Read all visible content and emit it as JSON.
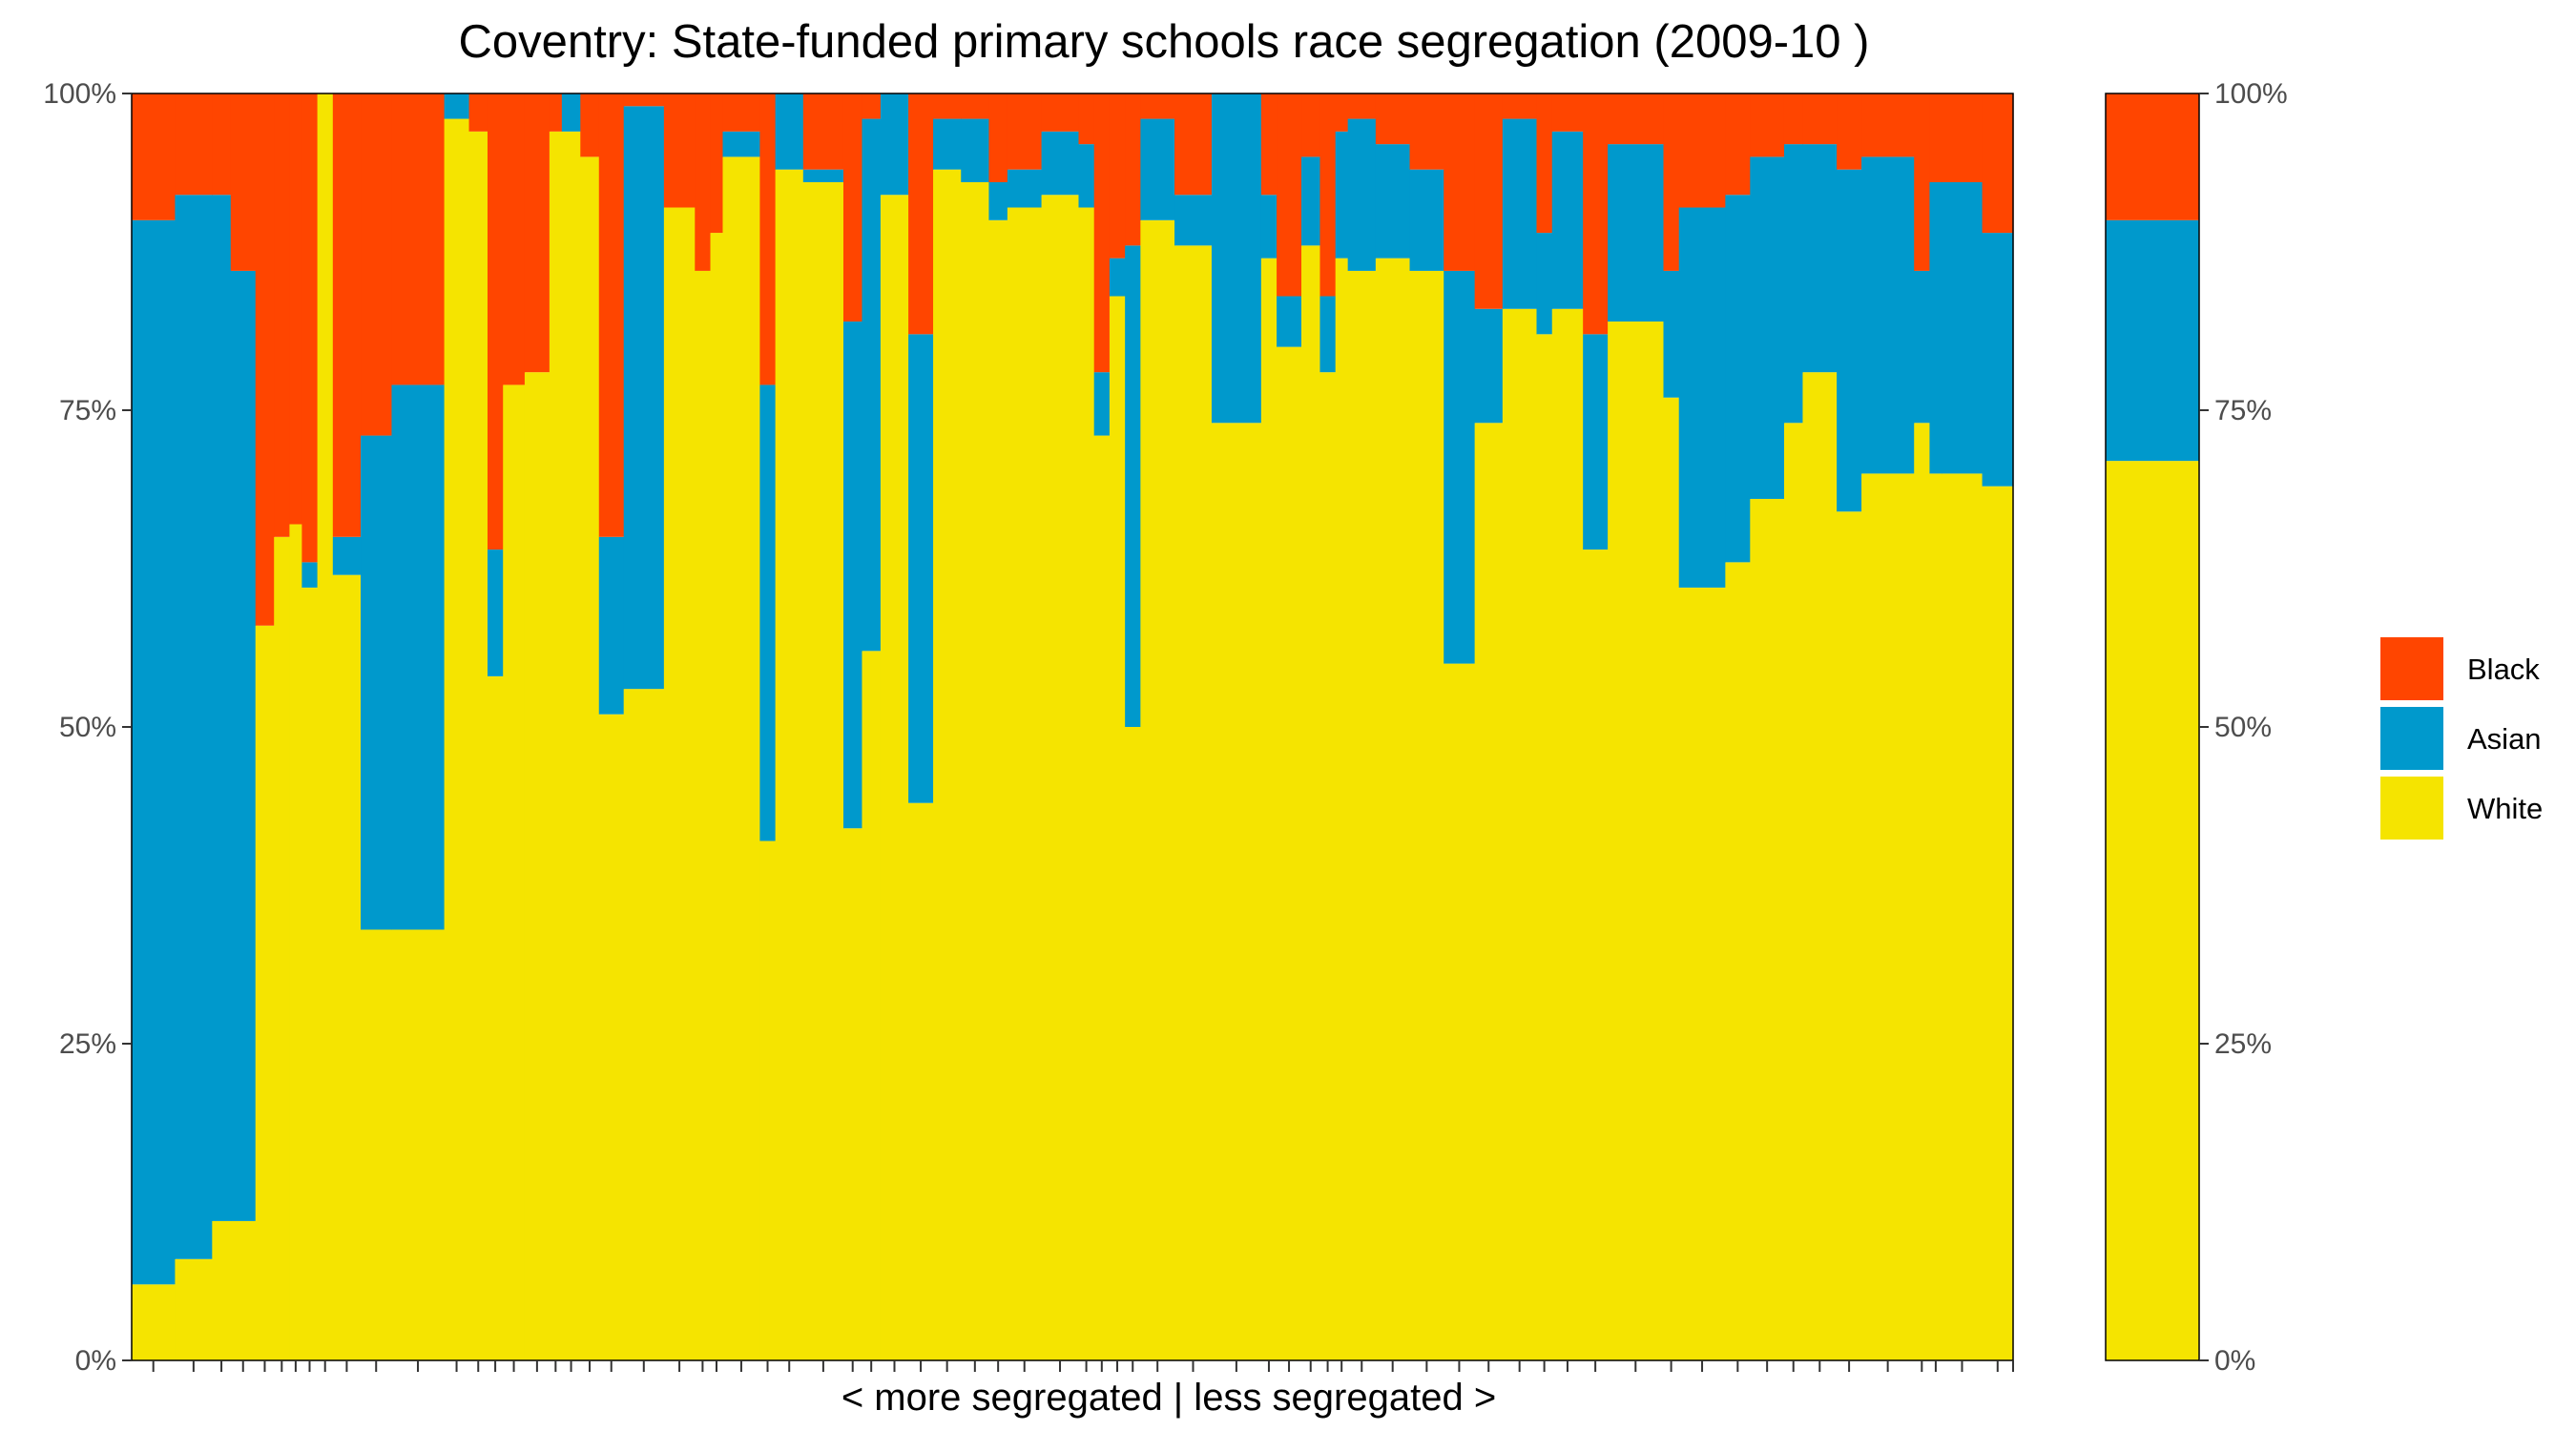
{
  "chart_data": {
    "type": "bar",
    "stacked": true,
    "normalized": true,
    "title": "Coventry: State-funded primary schools race segregation (2009-10 )",
    "xlabel": "< more segregated | less segregated >",
    "ylabel": "",
    "ylim": [
      0,
      100
    ],
    "y_ticks": [
      "0%",
      "25%",
      "50%",
      "75%",
      "100%"
    ],
    "y_tick_values": [
      0,
      25,
      50,
      75,
      100
    ],
    "legend_position": "right",
    "colors": {
      "Black": "#ff4500",
      "Asian": "#0099cc",
      "White": "#f5e400"
    },
    "legend": [
      "Black",
      "Asian",
      "White"
    ],
    "series_order_bottom_to_top": [
      "White",
      "Asian",
      "Black"
    ],
    "schools": [
      {
        "w": 1.4,
        "white": 6,
        "asian": 84,
        "black": 10
      },
      {
        "w": 1.2,
        "white": 8,
        "asian": 84,
        "black": 8
      },
      {
        "w": 0.6,
        "white": 11,
        "asian": 81,
        "black": 8
      },
      {
        "w": 0.8,
        "white": 11,
        "asian": 75,
        "black": 14
      },
      {
        "w": 0.6,
        "white": 58,
        "asian": 0,
        "black": 42
      },
      {
        "w": 0.5,
        "white": 65,
        "asian": 0,
        "black": 35
      },
      {
        "w": 0.4,
        "white": 66,
        "asian": 0,
        "black": 34
      },
      {
        "w": 0.5,
        "white": 61,
        "asian": 2,
        "black": 37
      },
      {
        "w": 0.5,
        "white": 100,
        "asian": 0,
        "black": 0
      },
      {
        "w": 0.9,
        "white": 62,
        "asian": 3,
        "black": 35
      },
      {
        "w": 1.0,
        "white": 34,
        "asian": 39,
        "black": 27
      },
      {
        "w": 1.7,
        "white": 34,
        "asian": 43,
        "black": 23
      },
      {
        "w": 0.8,
        "white": 98,
        "asian": 2,
        "black": 0
      },
      {
        "w": 0.6,
        "white": 97,
        "asian": 0,
        "black": 3
      },
      {
        "w": 0.5,
        "white": 54,
        "asian": 10,
        "black": 36
      },
      {
        "w": 0.7,
        "white": 77,
        "asian": 0,
        "black": 23
      },
      {
        "w": 0.8,
        "white": 78,
        "asian": 0,
        "black": 22
      },
      {
        "w": 0.4,
        "white": 97,
        "asian": 0,
        "black": 3
      },
      {
        "w": 0.6,
        "white": 97,
        "asian": 3,
        "black": 0
      },
      {
        "w": 0.6,
        "white": 95,
        "asian": 0,
        "black": 5
      },
      {
        "w": 0.8,
        "white": 51,
        "asian": 14,
        "black": 35
      },
      {
        "w": 1.3,
        "white": 53,
        "asian": 46,
        "black": 1
      },
      {
        "w": 1.0,
        "white": 91,
        "asian": 0,
        "black": 9
      },
      {
        "w": 0.5,
        "white": 86,
        "asian": 0,
        "black": 14
      },
      {
        "w": 0.4,
        "white": 89,
        "asian": 0,
        "black": 11
      },
      {
        "w": 1.2,
        "white": 95,
        "asian": 2,
        "black": 3
      },
      {
        "w": 0.5,
        "white": 41,
        "asian": 36,
        "black": 23
      },
      {
        "w": 0.9,
        "white": 94,
        "asian": 6,
        "black": 0
      },
      {
        "w": 1.3,
        "white": 93,
        "asian": 1,
        "black": 6
      },
      {
        "w": 0.6,
        "white": 42,
        "asian": 40,
        "black": 18
      },
      {
        "w": 0.6,
        "white": 56,
        "asian": 42,
        "black": 2
      },
      {
        "w": 0.9,
        "white": 92,
        "asian": 8,
        "black": 0
      },
      {
        "w": 0.8,
        "white": 44,
        "asian": 37,
        "black": 19
      },
      {
        "w": 0.9,
        "white": 94,
        "asian": 4,
        "black": 2
      },
      {
        "w": 0.9,
        "white": 93,
        "asian": 5,
        "black": 2
      },
      {
        "w": 0.6,
        "white": 90,
        "asian": 3,
        "black": 7
      },
      {
        "w": 1.1,
        "white": 91,
        "asian": 3,
        "black": 6
      },
      {
        "w": 1.2,
        "white": 92,
        "asian": 5,
        "black": 3
      },
      {
        "w": 0.5,
        "white": 91,
        "asian": 5,
        "black": 4
      },
      {
        "w": 0.5,
        "white": 73,
        "asian": 5,
        "black": 22
      },
      {
        "w": 0.5,
        "white": 84,
        "asian": 3,
        "black": 13
      },
      {
        "w": 0.5,
        "white": 50,
        "asian": 38,
        "black": 12
      },
      {
        "w": 1.1,
        "white": 90,
        "asian": 8,
        "black": 2
      },
      {
        "w": 1.2,
        "white": 88,
        "asian": 4,
        "black": 8
      },
      {
        "w": 1.6,
        "white": 74,
        "asian": 26,
        "black": 0
      },
      {
        "w": 0.5,
        "white": 87,
        "asian": 5,
        "black": 8
      },
      {
        "w": 0.8,
        "white": 80,
        "asian": 4,
        "black": 16
      },
      {
        "w": 0.6,
        "white": 88,
        "asian": 7,
        "black": 5
      },
      {
        "w": 0.5,
        "white": 78,
        "asian": 6,
        "black": 16
      },
      {
        "w": 0.4,
        "white": 87,
        "asian": 10,
        "black": 3
      },
      {
        "w": 0.9,
        "white": 86,
        "asian": 12,
        "black": 2
      },
      {
        "w": 1.1,
        "white": 87,
        "asian": 9,
        "black": 4
      },
      {
        "w": 1.1,
        "white": 86,
        "asian": 8,
        "black": 6
      },
      {
        "w": 1.0,
        "white": 55,
        "asian": 31,
        "black": 14
      },
      {
        "w": 0.9,
        "white": 74,
        "asian": 9,
        "black": 17
      },
      {
        "w": 1.1,
        "white": 83,
        "asian": 15,
        "black": 2
      },
      {
        "w": 0.5,
        "white": 81,
        "asian": 8,
        "black": 11
      },
      {
        "w": 1.0,
        "white": 83,
        "asian": 14,
        "black": 3
      },
      {
        "w": 0.8,
        "white": 64,
        "asian": 17,
        "black": 19
      },
      {
        "w": 1.8,
        "white": 82,
        "asian": 14,
        "black": 4
      },
      {
        "w": 0.5,
        "white": 76,
        "asian": 10,
        "black": 14
      },
      {
        "w": 1.5,
        "white": 61,
        "asian": 30,
        "black": 9
      },
      {
        "w": 0.8,
        "white": 63,
        "asian": 29,
        "black": 8
      },
      {
        "w": 1.1,
        "white": 68,
        "asian": 27,
        "black": 5
      },
      {
        "w": 0.6,
        "white": 74,
        "asian": 22,
        "black": 4
      },
      {
        "w": 1.1,
        "white": 78,
        "asian": 18,
        "black": 4
      },
      {
        "w": 0.8,
        "white": 67,
        "asian": 27,
        "black": 6
      },
      {
        "w": 1.7,
        "white": 70,
        "asian": 25,
        "black": 5
      },
      {
        "w": 0.5,
        "white": 74,
        "asian": 12,
        "black": 14
      },
      {
        "w": 0.4,
        "white": 70,
        "asian": 23,
        "black": 7
      },
      {
        "w": 1.3,
        "white": 70,
        "asian": 23,
        "black": 7
      },
      {
        "w": 1.0,
        "white": 69,
        "asian": 20,
        "black": 11
      }
    ],
    "overall": {
      "white": 71,
      "asian": 19,
      "black": 10
    }
  }
}
